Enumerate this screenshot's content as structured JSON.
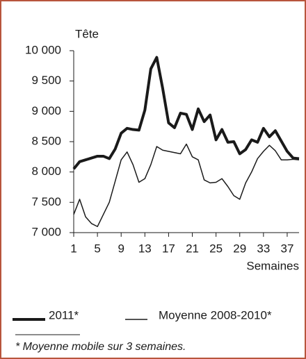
{
  "chart_data": {
    "type": "line",
    "y_label": "Tête",
    "x_label": "Semaines",
    "footnote": "* Moyenne mobile sur 3 semaines.",
    "x": [
      1,
      2,
      3,
      4,
      5,
      6,
      7,
      8,
      9,
      10,
      11,
      12,
      13,
      14,
      15,
      16,
      17,
      18,
      19,
      20,
      21,
      22,
      23,
      24,
      25,
      26,
      27,
      28,
      29,
      30,
      31,
      32,
      33,
      34,
      35,
      36,
      37,
      38,
      39
    ],
    "series": [
      {
        "name": "2011*",
        "color": "#1a1a1a",
        "width": 4,
        "values": [
          8050,
          8170,
          8200,
          8230,
          8260,
          8260,
          8220,
          8380,
          8640,
          8720,
          8700,
          8690,
          9020,
          9700,
          9890,
          9380,
          8810,
          8730,
          8970,
          8950,
          8700,
          9040,
          8830,
          8940,
          8530,
          8700,
          8490,
          8500,
          8300,
          8370,
          8530,
          8490,
          8720,
          8580,
          8680,
          8510,
          8340,
          8230,
          8220
        ]
      },
      {
        "name": "Moyenne 2008-2010*",
        "color": "#1a1a1a",
        "width": 1.5,
        "values": [
          7300,
          7550,
          7260,
          7150,
          7100,
          7300,
          7500,
          7850,
          8200,
          8330,
          8120,
          7830,
          7890,
          8120,
          8420,
          8360,
          8340,
          8320,
          8300,
          8460,
          8250,
          8200,
          7870,
          7820,
          7830,
          7890,
          7760,
          7610,
          7550,
          7820,
          8000,
          8220,
          8340,
          8440,
          8350,
          8200,
          8200,
          8210,
          8200
        ]
      }
    ],
    "xlim": [
      1,
      39
    ],
    "xticks": [
      1,
      5,
      9,
      13,
      17,
      21,
      25,
      29,
      33,
      37
    ],
    "ylim": [
      7000,
      10000
    ],
    "yticks": [
      {
        "value": 7000,
        "label": "7 000"
      },
      {
        "value": 7500,
        "label": "7 500"
      },
      {
        "value": 8000,
        "label": "8 000"
      },
      {
        "value": 8500,
        "label": "8 500"
      },
      {
        "value": 9000,
        "label": "9 000"
      },
      {
        "value": 9500,
        "label": "9 500"
      },
      {
        "value": 10000,
        "label": "10 000"
      }
    ]
  }
}
